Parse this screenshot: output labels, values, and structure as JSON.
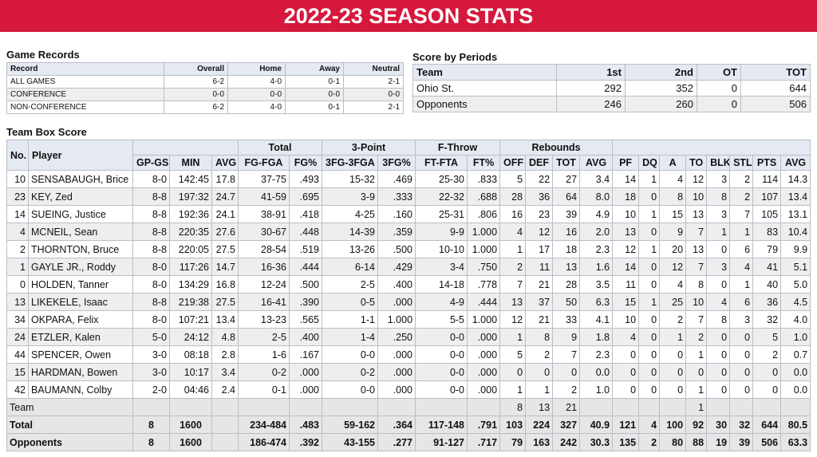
{
  "header": {
    "title": "2022-23 SEASON STATS"
  },
  "game_records": {
    "title": "Game Records",
    "headers": [
      "Record",
      "Overall",
      "Home",
      "Away",
      "Neutral"
    ],
    "rows": [
      [
        "ALL GAMES",
        "6-2",
        "4-0",
        "0-1",
        "2-1"
      ],
      [
        "CONFERENCE",
        "0-0",
        "0-0",
        "0-0",
        "0-0"
      ],
      [
        "NON-CONFERENCE",
        "6-2",
        "4-0",
        "0-1",
        "2-1"
      ]
    ]
  },
  "score_by_periods": {
    "title": "Score by Periods",
    "headers": [
      "Team",
      "1st",
      "2nd",
      "OT",
      "TOT"
    ],
    "rows": [
      [
        "Ohio St.",
        "292",
        "352",
        "0",
        "644"
      ],
      [
        "Opponents",
        "246",
        "260",
        "0",
        "506"
      ]
    ]
  },
  "box_score": {
    "title": "Team Box Score",
    "groups": [
      "Total",
      "3-Point",
      "F-Throw",
      "Rebounds"
    ],
    "columns": [
      "No.",
      "Player",
      "GP-GS",
      "MIN",
      "AVG",
      "FG-FGA",
      "FG%",
      "3FG-3FGA",
      "3FG%",
      "FT-FTA",
      "FT%",
      "OFF",
      "DEF",
      "TOT",
      "AVG",
      "PF",
      "DQ",
      "A",
      "TO",
      "BLK",
      "STL",
      "PTS",
      "AVG"
    ],
    "players": [
      [
        "10",
        "SENSABAUGH, Brice",
        "8-0",
        "142:45",
        "17.8",
        "37-75",
        ".493",
        "15-32",
        ".469",
        "25-30",
        ".833",
        "5",
        "22",
        "27",
        "3.4",
        "14",
        "1",
        "4",
        "12",
        "3",
        "2",
        "114",
        "14.3"
      ],
      [
        "23",
        "KEY, Zed",
        "8-8",
        "197:32",
        "24.7",
        "41-59",
        ".695",
        "3-9",
        ".333",
        "22-32",
        ".688",
        "28",
        "36",
        "64",
        "8.0",
        "18",
        "0",
        "8",
        "10",
        "8",
        "2",
        "107",
        "13.4"
      ],
      [
        "14",
        "SUEING, Justice",
        "8-8",
        "192:36",
        "24.1",
        "38-91",
        ".418",
        "4-25",
        ".160",
        "25-31",
        ".806",
        "16",
        "23",
        "39",
        "4.9",
        "10",
        "1",
        "15",
        "13",
        "3",
        "7",
        "105",
        "13.1"
      ],
      [
        "4",
        "MCNEIL, Sean",
        "8-8",
        "220:35",
        "27.6",
        "30-67",
        ".448",
        "14-39",
        ".359",
        "9-9",
        "1.000",
        "4",
        "12",
        "16",
        "2.0",
        "13",
        "0",
        "9",
        "7",
        "1",
        "1",
        "83",
        "10.4"
      ],
      [
        "2",
        "THORNTON, Bruce",
        "8-8",
        "220:05",
        "27.5",
        "28-54",
        ".519",
        "13-26",
        ".500",
        "10-10",
        "1.000",
        "1",
        "17",
        "18",
        "2.3",
        "12",
        "1",
        "20",
        "13",
        "0",
        "6",
        "79",
        "9.9"
      ],
      [
        "1",
        "GAYLE JR., Roddy",
        "8-0",
        "117:26",
        "14.7",
        "16-36",
        ".444",
        "6-14",
        ".429",
        "3-4",
        ".750",
        "2",
        "11",
        "13",
        "1.6",
        "14",
        "0",
        "12",
        "7",
        "3",
        "4",
        "41",
        "5.1"
      ],
      [
        "0",
        "HOLDEN, Tanner",
        "8-0",
        "134:29",
        "16.8",
        "12-24",
        ".500",
        "2-5",
        ".400",
        "14-18",
        ".778",
        "7",
        "21",
        "28",
        "3.5",
        "11",
        "0",
        "4",
        "8",
        "0",
        "1",
        "40",
        "5.0"
      ],
      [
        "13",
        "LIKEKELE, Isaac",
        "8-8",
        "219:38",
        "27.5",
        "16-41",
        ".390",
        "0-5",
        ".000",
        "4-9",
        ".444",
        "13",
        "37",
        "50",
        "6.3",
        "15",
        "1",
        "25",
        "10",
        "4",
        "6",
        "36",
        "4.5"
      ],
      [
        "34",
        "OKPARA, Felix",
        "8-0",
        "107:21",
        "13.4",
        "13-23",
        ".565",
        "1-1",
        "1.000",
        "5-5",
        "1.000",
        "12",
        "21",
        "33",
        "4.1",
        "10",
        "0",
        "2",
        "7",
        "8",
        "3",
        "32",
        "4.0"
      ],
      [
        "24",
        "ETZLER, Kalen",
        "5-0",
        "24:12",
        "4.8",
        "2-5",
        ".400",
        "1-4",
        ".250",
        "0-0",
        ".000",
        "1",
        "8",
        "9",
        "1.8",
        "4",
        "0",
        "1",
        "2",
        "0",
        "0",
        "5",
        "1.0"
      ],
      [
        "44",
        "SPENCER, Owen",
        "3-0",
        "08:18",
        "2.8",
        "1-6",
        ".167",
        "0-0",
        ".000",
        "0-0",
        ".000",
        "5",
        "2",
        "7",
        "2.3",
        "0",
        "0",
        "0",
        "1",
        "0",
        "0",
        "2",
        "0.7"
      ],
      [
        "15",
        "HARDMAN, Bowen",
        "3-0",
        "10:17",
        "3.4",
        "0-2",
        ".000",
        "0-2",
        ".000",
        "0-0",
        ".000",
        "0",
        "0",
        "0",
        "0.0",
        "0",
        "0",
        "0",
        "0",
        "0",
        "0",
        "0",
        "0.0"
      ],
      [
        "42",
        "BAUMANN, Colby",
        "2-0",
        "04:46",
        "2.4",
        "0-1",
        ".000",
        "0-0",
        ".000",
        "0-0",
        ".000",
        "1",
        "1",
        "2",
        "1.0",
        "0",
        "0",
        "0",
        "1",
        "0",
        "0",
        "0",
        "0.0"
      ]
    ],
    "summary": [
      [
        "Team",
        null,
        null,
        null,
        null,
        null,
        null,
        null,
        null,
        null,
        "8",
        "13",
        "21",
        null,
        null,
        null,
        null,
        "1",
        null,
        null,
        null,
        null
      ],
      [
        "Total",
        "8",
        "1600",
        null,
        "234-484",
        ".483",
        "59-162",
        ".364",
        "117-148",
        ".791",
        "103",
        "224",
        "327",
        "40.9",
        "121",
        "4",
        "100",
        "92",
        "30",
        "32",
        "644",
        "80.5"
      ],
      [
        "Opponents",
        "8",
        "1600",
        null,
        "186-474",
        ".392",
        "43-155",
        ".277",
        "91-127",
        ".717",
        "79",
        "163",
        "242",
        "30.3",
        "135",
        "2",
        "80",
        "88",
        "19",
        "39",
        "506",
        "63.3"
      ]
    ]
  }
}
